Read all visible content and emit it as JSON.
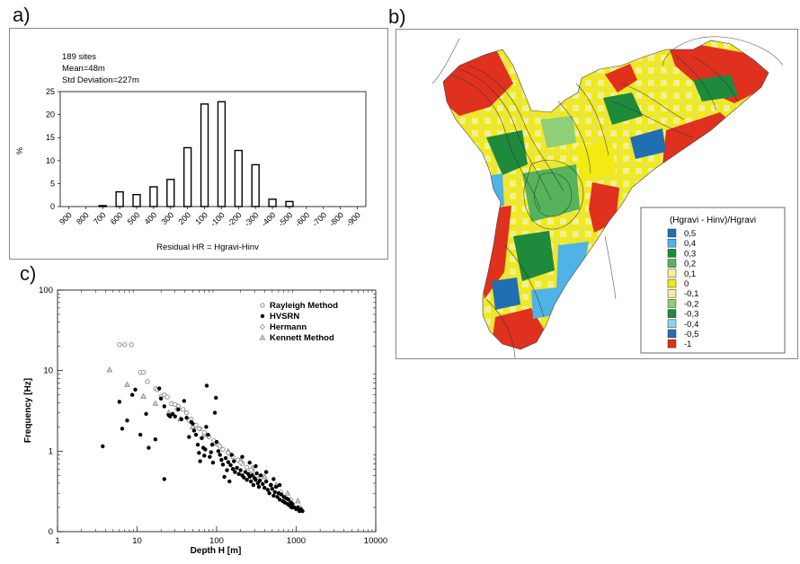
{
  "panels": {
    "a": "a)",
    "b": "b)",
    "c": "c)"
  },
  "chart_data": [
    {
      "type": "bar",
      "annotations": [
        "189 sites",
        "Mean=48m",
        "Std Deviation=227m"
      ],
      "xlabel": "Residual HR = Hgravi-Hinv",
      "ylabel": "%",
      "categories": [
        "900",
        "800",
        "700",
        "600",
        "500",
        "400",
        "300",
        "200",
        "100",
        "-100",
        "-200",
        "-300",
        "-400",
        "-500",
        "-600",
        "-700",
        "-800",
        "-900"
      ],
      "values": [
        0,
        0,
        0.2,
        3.2,
        2.6,
        4.3,
        5.9,
        12.8,
        22.3,
        22.8,
        12.2,
        9.1,
        1.6,
        1.1,
        0,
        0,
        0,
        0
      ],
      "ylim": [
        0,
        25
      ],
      "yticks": [
        0,
        5,
        10,
        15,
        20,
        25
      ],
      "grid": false
    },
    {
      "type": "heatmap",
      "legend_title": "(Hgravi - Hinv)/Hgravi",
      "legend": [
        {
          "label": "0,5",
          "color": "#1f6fb2"
        },
        {
          "label": "0,4",
          "color": "#4fb3e6"
        },
        {
          "label": "0,3",
          "color": "#1e8a3c"
        },
        {
          "label": "0,2",
          "color": "#55b35a"
        },
        {
          "label": "0,1",
          "color": "#f3ef9a"
        },
        {
          "label": "0",
          "color": "#f2ea12"
        },
        {
          "label": "-0,1",
          "color": "#eef09a"
        },
        {
          "label": "-0,2",
          "color": "#8fcf78"
        },
        {
          "label": "-0,3",
          "color": "#1e8a3c"
        },
        {
          "label": "-0,4",
          "color": "#8fd3ee"
        },
        {
          "label": "-0,5",
          "color": "#1f6fb2"
        },
        {
          "label": "-1",
          "color": "#e0301e"
        }
      ]
    },
    {
      "type": "scatter",
      "xlabel": "Depth H [m]",
      "ylabel": "Frequency [Hz]",
      "xscale": "log",
      "yscale": "log",
      "xlim": [
        1,
        10000
      ],
      "ylim": [
        0.1,
        100
      ],
      "xticks": [
        1,
        10,
        100,
        1000,
        10000
      ],
      "xtick_labels": [
        "1",
        "10",
        "100",
        "1000",
        "10000"
      ],
      "yticks": [
        0.1,
        1,
        10,
        100
      ],
      "ytick_labels": [
        "0",
        "1",
        "10",
        "100"
      ],
      "series": [
        {
          "name": "Rayleigh Method",
          "marker": "open-circle",
          "points": [
            [
              6,
              21
            ],
            [
              7,
              21
            ],
            [
              8.5,
              21
            ],
            [
              11,
              9.5
            ],
            [
              12,
              9.5
            ],
            [
              13.5,
              7.3
            ],
            [
              17,
              6
            ],
            [
              18,
              5.8
            ],
            [
              22,
              5
            ],
            [
              24,
              4.7
            ],
            [
              27,
              3.9
            ],
            [
              30,
              3.8
            ],
            [
              33,
              3.6
            ],
            [
              38,
              3.3
            ],
            [
              42,
              3.0
            ],
            [
              48,
              2.5
            ],
            [
              55,
              2.1
            ],
            [
              62,
              1.9
            ],
            [
              70,
              1.7
            ],
            [
              80,
              1.5
            ],
            [
              92,
              1.35
            ],
            [
              105,
              1.2
            ],
            [
              120,
              1.05
            ],
            [
              140,
              0.95
            ],
            [
              160,
              0.85
            ],
            [
              185,
              0.78
            ],
            [
              210,
              0.7
            ],
            [
              240,
              0.63
            ],
            [
              280,
              0.56
            ],
            [
              320,
              0.5
            ]
          ]
        },
        {
          "name": "HVSRN",
          "marker": "filled-circle",
          "points": [
            [
              3.7,
              1.15
            ],
            [
              6,
              4.1
            ],
            [
              6.5,
              1.9
            ],
            [
              7.5,
              2.4
            ],
            [
              8.7,
              5.0
            ],
            [
              9.5,
              5.8
            ],
            [
              11,
              1.6
            ],
            [
              13,
              2.9
            ],
            [
              14,
              1.1
            ],
            [
              17,
              1.4
            ],
            [
              19,
              6.0
            ],
            [
              20,
              4.5
            ],
            [
              22,
              3.6
            ],
            [
              22,
              0.45
            ],
            [
              25,
              2.8
            ],
            [
              26,
              2.7
            ],
            [
              28,
              2.9
            ],
            [
              30,
              2.7
            ],
            [
              33,
              3.3
            ],
            [
              36,
              2.5
            ],
            [
              39,
              4.2
            ],
            [
              42,
              2.6
            ],
            [
              45,
              1.5
            ],
            [
              48,
              2.3
            ],
            [
              50,
              2.2
            ],
            [
              52,
              1.8
            ],
            [
              55,
              1.6
            ],
            [
              58,
              1.2
            ],
            [
              60,
              0.95
            ],
            [
              62,
              0.75
            ],
            [
              65,
              1.45
            ],
            [
              68,
              1.1
            ],
            [
              70,
              0.88
            ],
            [
              72,
              1.05
            ],
            [
              74,
              2.0
            ],
            [
              75,
              6.5
            ],
            [
              78,
              1.6
            ],
            [
              82,
              0.85
            ],
            [
              85,
              0.97
            ],
            [
              88,
              1.2
            ],
            [
              90,
              0.72
            ],
            [
              95,
              3.0
            ],
            [
              98,
              4.6
            ],
            [
              100,
              1.3
            ],
            [
              105,
              1.0
            ],
            [
              110,
              0.9
            ],
            [
              115,
              0.78
            ],
            [
              120,
              0.68
            ],
            [
              125,
              0.48
            ],
            [
              130,
              0.82
            ],
            [
              135,
              0.58
            ],
            [
              140,
              0.73
            ],
            [
              150,
              0.67
            ],
            [
              160,
              0.6
            ],
            [
              165,
              0.75
            ],
            [
              170,
              0.55
            ],
            [
              180,
              0.62
            ],
            [
              190,
              0.52
            ],
            [
              200,
              0.58
            ],
            [
              210,
              0.5
            ],
            [
              220,
              0.47
            ],
            [
              230,
              0.55
            ],
            [
              240,
              0.44
            ],
            [
              250,
              0.52
            ],
            [
              260,
              0.48
            ],
            [
              270,
              0.42
            ],
            [
              280,
              0.5
            ],
            [
              290,
              0.38
            ],
            [
              300,
              0.46
            ],
            [
              310,
              0.44
            ],
            [
              320,
              0.53
            ],
            [
              330,
              0.4
            ],
            [
              340,
              0.36
            ],
            [
              350,
              0.43
            ],
            [
              360,
              0.5
            ],
            [
              380,
              0.39
            ],
            [
              400,
              0.35
            ],
            [
              420,
              0.42
            ],
            [
              440,
              0.33
            ],
            [
              460,
              0.3
            ],
            [
              480,
              0.38
            ],
            [
              500,
              0.34
            ],
            [
              520,
              0.28
            ],
            [
              540,
              0.31
            ],
            [
              560,
              0.36
            ],
            [
              580,
              0.27
            ],
            [
              600,
              0.3
            ],
            [
              620,
              0.25
            ],
            [
              650,
              0.29
            ],
            [
              680,
              0.24
            ],
            [
              700,
              0.27
            ],
            [
              720,
              0.23
            ],
            [
              750,
              0.26
            ],
            [
              780,
              0.22
            ],
            [
              800,
              0.25
            ],
            [
              830,
              0.21
            ],
            [
              860,
              0.23
            ],
            [
              880,
              0.2
            ],
            [
              900,
              0.22
            ],
            [
              950,
              0.2
            ],
            [
              1000,
              0.19
            ],
            [
              1050,
              0.2
            ],
            [
              1100,
              0.18
            ],
            [
              1150,
              0.19
            ],
            [
              1200,
              0.18
            ],
            [
              145,
              0.42
            ],
            [
              155,
              0.9
            ],
            [
              210,
              0.85
            ],
            [
              260,
              0.72
            ],
            [
              310,
              0.65
            ],
            [
              420,
              0.55
            ],
            [
              520,
              0.45
            ],
            [
              620,
              0.38
            ]
          ]
        },
        {
          "name": "Hermann",
          "marker": "open-diamond",
          "points": [
            [
              20,
              4.8
            ],
            [
              32,
              3.3
            ],
            [
              45,
              2.4
            ],
            [
              60,
              1.9
            ],
            [
              80,
              1.5
            ],
            [
              110,
              1.15
            ],
            [
              150,
              0.9
            ],
            [
              200,
              0.72
            ],
            [
              270,
              0.58
            ],
            [
              360,
              0.47
            ],
            [
              480,
              0.38
            ],
            [
              640,
              0.31
            ],
            [
              850,
              0.25
            ],
            [
              1100,
              0.2
            ]
          ]
        },
        {
          "name": "Kennett Method",
          "marker": "open-triangle",
          "points": [
            [
              4.5,
              10.2
            ],
            [
              7.5,
              6.7
            ],
            [
              12,
              4.8
            ],
            [
              17,
              3.9
            ],
            [
              25,
              3.0
            ],
            [
              35,
              2.5
            ],
            [
              50,
              2.0
            ],
            [
              70,
              1.6
            ],
            [
              100,
              1.25
            ],
            [
              140,
              1.0
            ],
            [
              200,
              0.78
            ],
            [
              280,
              0.62
            ],
            [
              400,
              0.48
            ],
            [
              560,
              0.38
            ],
            [
              780,
              0.3
            ],
            [
              1050,
              0.24
            ]
          ]
        }
      ]
    }
  ]
}
